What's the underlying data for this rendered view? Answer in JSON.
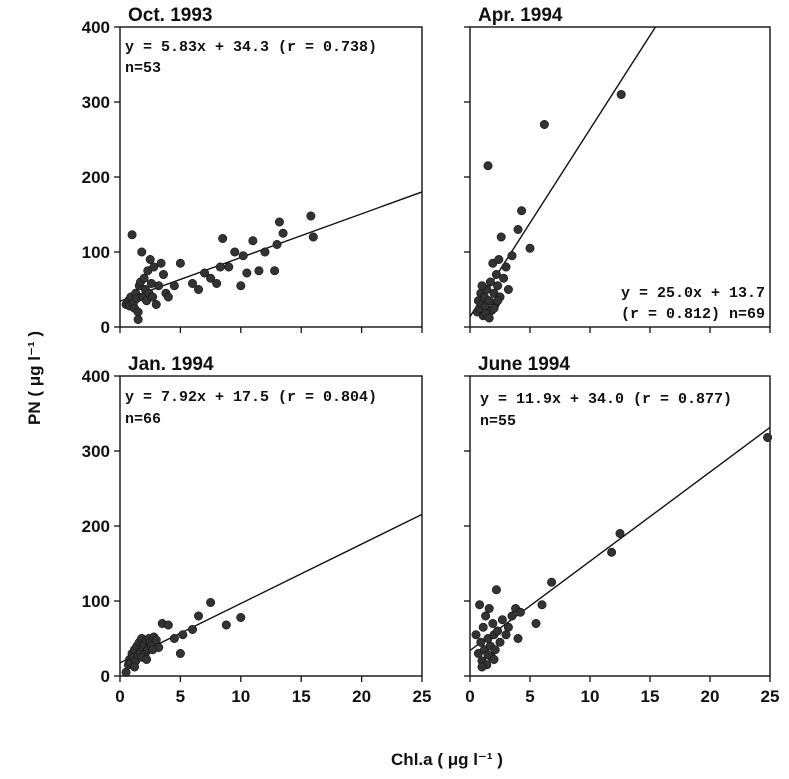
{
  "figure": {
    "xlabel": "Chl.a ( μg l⁻¹ )",
    "ylabel": "PN ( μg l⁻¹ )"
  },
  "chart_data": [
    {
      "type": "scatter",
      "title": "Oct. 1993",
      "equation": "y = 5.83x + 34.3 (r = 0.738)",
      "n_label": "n=53",
      "fit": {
        "slope": 5.83,
        "intercept": 34.3
      },
      "xlim": [
        0,
        25
      ],
      "ylim": [
        0,
        400
      ],
      "xticks": [
        0,
        5,
        10,
        15,
        20,
        25
      ],
      "yticks": [
        0,
        100,
        200,
        300,
        400
      ],
      "points": [
        [
          0.5,
          30
        ],
        [
          0.7,
          35
        ],
        [
          0.8,
          28
        ],
        [
          0.9,
          40
        ],
        [
          1.0,
          123
        ],
        [
          1.1,
          32
        ],
        [
          1.2,
          25
        ],
        [
          1.3,
          45
        ],
        [
          1.4,
          38
        ],
        [
          1.5,
          20
        ],
        [
          1.6,
          55
        ],
        [
          1.7,
          60
        ],
        [
          1.8,
          100
        ],
        [
          1.9,
          40
        ],
        [
          2.0,
          65
        ],
        [
          2.1,
          50
        ],
        [
          2.2,
          35
        ],
        [
          2.3,
          75
        ],
        [
          2.4,
          45
        ],
        [
          2.5,
          90
        ],
        [
          2.6,
          58
        ],
        [
          2.7,
          40
        ],
        [
          2.8,
          80
        ],
        [
          3.0,
          30
        ],
        [
          3.2,
          55
        ],
        [
          3.4,
          85
        ],
        [
          3.6,
          70
        ],
        [
          3.8,
          45
        ],
        [
          4.0,
          40
        ],
        [
          4.5,
          55
        ],
        [
          5.0,
          85
        ],
        [
          6.0,
          58
        ],
        [
          6.5,
          50
        ],
        [
          7.0,
          72
        ],
        [
          7.5,
          65
        ],
        [
          8.0,
          58
        ],
        [
          8.3,
          80
        ],
        [
          8.5,
          118
        ],
        [
          9.0,
          80
        ],
        [
          9.5,
          100
        ],
        [
          10.0,
          55
        ],
        [
          10.2,
          95
        ],
        [
          10.5,
          72
        ],
        [
          11.0,
          115
        ],
        [
          11.5,
          75
        ],
        [
          12.0,
          100
        ],
        [
          12.8,
          75
        ],
        [
          13.0,
          110
        ],
        [
          13.2,
          140
        ],
        [
          13.5,
          125
        ],
        [
          15.8,
          148
        ],
        [
          16.0,
          120
        ],
        [
          1.5,
          10
        ]
      ]
    },
    {
      "type": "scatter",
      "title": "Apr. 1994",
      "equation": "y = 25.0x + 13.7",
      "equation_line2": "(r = 0.812) n=69",
      "fit": {
        "slope": 25.0,
        "intercept": 13.7
      },
      "xlim": [
        0,
        25
      ],
      "ylim": [
        0,
        400
      ],
      "xticks": [
        0,
        5,
        10,
        15,
        20,
        25
      ],
      "yticks": [
        0,
        100,
        200,
        300,
        400
      ],
      "points": [
        [
          0.6,
          20
        ],
        [
          0.7,
          35
        ],
        [
          0.8,
          25
        ],
        [
          0.9,
          45
        ],
        [
          1.0,
          30
        ],
        [
          1.1,
          15
        ],
        [
          1.2,
          40
        ],
        [
          1.3,
          28
        ],
        [
          1.4,
          50
        ],
        [
          1.5,
          215
        ],
        [
          1.6,
          35
        ],
        [
          1.7,
          60
        ],
        [
          1.8,
          22
        ],
        [
          1.9,
          85
        ],
        [
          2.0,
          45
        ],
        [
          2.1,
          30
        ],
        [
          2.2,
          70
        ],
        [
          2.3,
          55
        ],
        [
          2.4,
          90
        ],
        [
          2.5,
          40
        ],
        [
          2.6,
          120
        ],
        [
          2.8,
          65
        ],
        [
          3.0,
          80
        ],
        [
          3.2,
          50
        ],
        [
          3.5,
          95
        ],
        [
          4.0,
          130
        ],
        [
          4.3,
          155
        ],
        [
          5.0,
          105
        ],
        [
          6.2,
          270
        ],
        [
          12.6,
          310
        ],
        [
          1.0,
          55
        ],
        [
          1.3,
          18
        ],
        [
          1.6,
          12
        ],
        [
          2.0,
          25
        ],
        [
          2.3,
          35
        ]
      ]
    },
    {
      "type": "scatter",
      "title": "Jan. 1994",
      "equation": "y = 7.92x + 17.5 (r = 0.804)",
      "n_label": "n=66",
      "fit": {
        "slope": 7.92,
        "intercept": 17.5
      },
      "xlim": [
        0,
        25
      ],
      "ylim": [
        0,
        400
      ],
      "xticks": [
        0,
        5,
        10,
        15,
        20,
        25
      ],
      "yticks": [
        0,
        100,
        200,
        300,
        400
      ],
      "points": [
        [
          0.5,
          5
        ],
        [
          0.7,
          15
        ],
        [
          0.8,
          22
        ],
        [
          0.9,
          18
        ],
        [
          1.0,
          30
        ],
        [
          1.1,
          25
        ],
        [
          1.2,
          35
        ],
        [
          1.3,
          20
        ],
        [
          1.4,
          40
        ],
        [
          1.5,
          28
        ],
        [
          1.6,
          45
        ],
        [
          1.7,
          32
        ],
        [
          1.8,
          50
        ],
        [
          1.9,
          38
        ],
        [
          2.0,
          42
        ],
        [
          2.1,
          30
        ],
        [
          2.2,
          48
        ],
        [
          2.3,
          35
        ],
        [
          2.4,
          50
        ],
        [
          2.5,
          45
        ],
        [
          2.6,
          40
        ],
        [
          2.8,
          52
        ],
        [
          3.0,
          48
        ],
        [
          3.2,
          38
        ],
        [
          3.5,
          70
        ],
        [
          4.0,
          68
        ],
        [
          4.5,
          50
        ],
        [
          5.0,
          30
        ],
        [
          5.2,
          55
        ],
        [
          6.0,
          62
        ],
        [
          6.5,
          80
        ],
        [
          7.5,
          98
        ],
        [
          8.8,
          68
        ],
        [
          10.0,
          78
        ],
        [
          1.2,
          12
        ],
        [
          1.8,
          25
        ],
        [
          2.2,
          22
        ],
        [
          2.7,
          35
        ]
      ]
    },
    {
      "type": "scatter",
      "title": "June 1994",
      "equation": "y = 11.9x + 34.0 (r = 0.877)",
      "n_label": "n=55",
      "fit": {
        "slope": 11.9,
        "intercept": 34.0
      },
      "xlim": [
        0,
        25
      ],
      "ylim": [
        0,
        400
      ],
      "xticks": [
        0,
        5,
        10,
        15,
        20,
        25
      ],
      "yticks": [
        0,
        100,
        200,
        300,
        400
      ],
      "points": [
        [
          0.5,
          55
        ],
        [
          0.7,
          30
        ],
        [
          0.8,
          95
        ],
        [
          0.9,
          45
        ],
        [
          1.0,
          20
        ],
        [
          1.1,
          65
        ],
        [
          1.2,
          35
        ],
        [
          1.3,
          80
        ],
        [
          1.4,
          15
        ],
        [
          1.5,
          50
        ],
        [
          1.6,
          90
        ],
        [
          1.7,
          40
        ],
        [
          1.8,
          25
        ],
        [
          1.9,
          70
        ],
        [
          2.0,
          55
        ],
        [
          2.1,
          35
        ],
        [
          2.2,
          115
        ],
        [
          2.3,
          60
        ],
        [
          2.5,
          45
        ],
        [
          2.7,
          75
        ],
        [
          3.0,
          55
        ],
        [
          3.2,
          65
        ],
        [
          3.5,
          80
        ],
        [
          3.8,
          90
        ],
        [
          4.0,
          50
        ],
        [
          4.2,
          85
        ],
        [
          5.5,
          70
        ],
        [
          6.0,
          95
        ],
        [
          6.8,
          125
        ],
        [
          11.8,
          165
        ],
        [
          12.5,
          190
        ],
        [
          24.8,
          318
        ],
        [
          1.0,
          12
        ],
        [
          1.5,
          28
        ],
        [
          2.0,
          22
        ]
      ]
    }
  ]
}
